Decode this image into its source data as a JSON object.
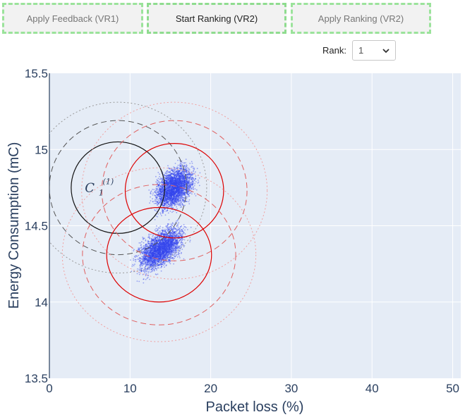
{
  "toolbar": {
    "apply_feedback_label": "Apply Feedback (VR1)",
    "start_ranking_label": "Start Ranking (VR2)",
    "apply_ranking_label": "Apply Ranking (VR2)"
  },
  "rank": {
    "label": "Rank:",
    "selected": "1"
  },
  "chart_data": {
    "type": "scatter",
    "xlabel": "Packet loss (%)",
    "ylabel": "Energy Consumption (mC)",
    "xlim": [
      0,
      51
    ],
    "ylim": [
      13.5,
      15.5
    ],
    "x_ticks": [
      0,
      10,
      20,
      30,
      40,
      50
    ],
    "y_ticks": [
      13.5,
      14,
      14.5,
      15,
      15.5
    ],
    "grid": true,
    "point_color": "#3344ee",
    "plot_bg": "#e5ecf6",
    "annotation": {
      "text": "C",
      "sub": "1",
      "sup": "(1)",
      "x": 4.4,
      "y": 14.75
    },
    "clusters": [
      {
        "cx": 15.5,
        "cy": 14.75,
        "spread_x": 2.4,
        "spread_y": 0.12,
        "angle_deg": 25,
        "count": 3000
      },
      {
        "cx": 13.8,
        "cy": 14.35,
        "spread_x": 2.7,
        "spread_y": 0.11,
        "angle_deg": 25,
        "count": 3000
      }
    ],
    "circles": [
      {
        "cx": 8.5,
        "cy": 14.75,
        "rx": 5.8,
        "ry": 0.3,
        "color": "#111111",
        "style": "solid"
      },
      {
        "cx": 8.5,
        "cy": 14.75,
        "rx": 8.5,
        "ry": 0.44,
        "color": "#555555",
        "style": "dashed"
      },
      {
        "cx": 8.5,
        "cy": 14.75,
        "rx": 11.0,
        "ry": 0.56,
        "color": "#9a9a9a",
        "style": "dotted"
      },
      {
        "cx": 15.5,
        "cy": 14.73,
        "rx": 6.1,
        "ry": 0.31,
        "color": "#dd0000",
        "style": "solid"
      },
      {
        "cx": 15.5,
        "cy": 14.73,
        "rx": 9.0,
        "ry": 0.46,
        "color": "#e06060",
        "style": "dashed"
      },
      {
        "cx": 15.5,
        "cy": 14.73,
        "rx": 11.5,
        "ry": 0.58,
        "color": "#f0a0a0",
        "style": "dotted"
      },
      {
        "cx": 13.6,
        "cy": 14.31,
        "rx": 6.5,
        "ry": 0.31,
        "color": "#dd0000",
        "style": "solid"
      },
      {
        "cx": 13.6,
        "cy": 14.31,
        "rx": 9.5,
        "ry": 0.46,
        "color": "#e06060",
        "style": "dashed"
      },
      {
        "cx": 13.6,
        "cy": 14.31,
        "rx": 12.0,
        "ry": 0.57,
        "color": "#f0a0a0",
        "style": "dotted"
      }
    ]
  }
}
